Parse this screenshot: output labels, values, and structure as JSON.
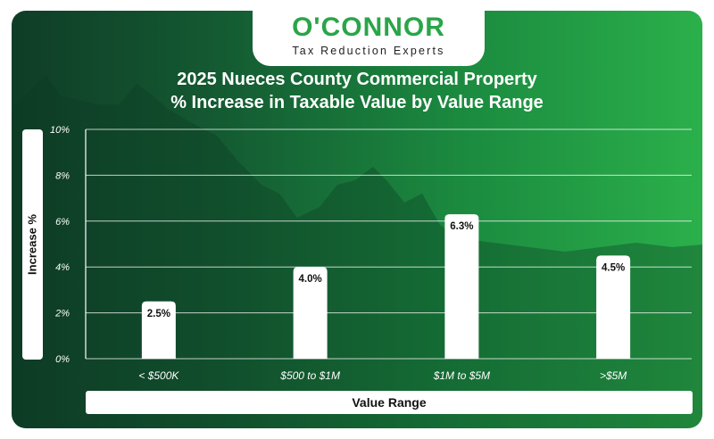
{
  "brand": {
    "name": "O'CONNOR",
    "tagline": "Tax Reduction Experts"
  },
  "chart_data": {
    "type": "bar",
    "title": "2025 Nueces County Commercial Property",
    "subtitle": "% Increase in Taxable Value by Value Range",
    "xlabel": "Value Range",
    "ylabel": "Increase %",
    "categories": [
      "< $500K",
      "$500 to $1M",
      "$1M to $5M",
      ">$5M"
    ],
    "values": [
      2.5,
      4.0,
      6.3,
      4.5
    ],
    "value_labels": [
      "2.5%",
      "4.0%",
      "6.3%",
      "4.5%"
    ],
    "yticks": [
      "0%",
      "2%",
      "4%",
      "6%",
      "8%",
      "10%"
    ],
    "ylim": [
      0,
      10
    ],
    "grid": true,
    "colors": {
      "bar": "#ffffff",
      "text": "#111111",
      "background_start": "#0f3d27",
      "background_end": "#2bb04b"
    }
  }
}
